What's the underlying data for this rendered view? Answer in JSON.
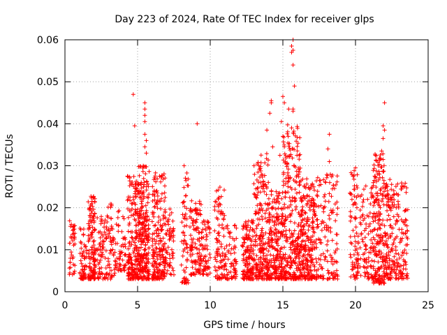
{
  "chart_data": {
    "type": "scatter",
    "title": "Day 223 of 2024, Rate Of TEC Index for receiver glps",
    "xlabel": "GPS time / hours",
    "ylabel": "ROTI / TECUs",
    "xlim": [
      0,
      25
    ],
    "ylim": [
      0,
      0.06
    ],
    "x_ticks": [
      0,
      5,
      10,
      15,
      20,
      25
    ],
    "y_ticks": [
      0,
      0.01,
      0.02,
      0.03,
      0.04,
      0.05,
      0.06
    ],
    "x_tick_labels": [
      "0",
      "5",
      "10",
      "15",
      "20",
      "25"
    ],
    "y_tick_labels": [
      "0",
      "0.01",
      "0.02",
      "0.03",
      "0.04",
      "0.05",
      "0.06"
    ],
    "grid": true,
    "marker": "+",
    "color": "#ff0000",
    "clusters": [
      {
        "x": [
          0.3,
          0.7
        ],
        "y": [
          0.004,
          0.017
        ],
        "n": 40
      },
      {
        "x": [
          1.0,
          1.5
        ],
        "y": [
          0.003,
          0.016
        ],
        "n": 60
      },
      {
        "x": [
          1.6,
          2.1
        ],
        "y": [
          0.003,
          0.023
        ],
        "n": 130
      },
      {
        "x": [
          2.2,
          2.8
        ],
        "y": [
          0.003,
          0.018
        ],
        "n": 60
      },
      {
        "x": [
          2.8,
          3.5
        ],
        "y": [
          0.003,
          0.021
        ],
        "n": 70
      },
      {
        "x": [
          3.5,
          4.2
        ],
        "y": [
          0.005,
          0.02
        ],
        "n": 50
      },
      {
        "x": [
          4.3,
          5.0
        ],
        "y": [
          0.003,
          0.028
        ],
        "n": 160
      },
      {
        "x": [
          5.0,
          5.8
        ],
        "y": [
          0.003,
          0.03
        ],
        "n": 260
      },
      {
        "x": [
          6.0,
          6.9
        ],
        "y": [
          0.003,
          0.029
        ],
        "n": 200
      },
      {
        "x": [
          6.9,
          7.5
        ],
        "y": [
          0.004,
          0.02
        ],
        "n": 60
      },
      {
        "x": [
          8.0,
          8.5
        ],
        "y": [
          0.002,
          0.03
        ],
        "n": 60
      },
      {
        "x": [
          8.6,
          9.4
        ],
        "y": [
          0.004,
          0.022
        ],
        "n": 110
      },
      {
        "x": [
          9.4,
          10.0
        ],
        "y": [
          0.004,
          0.017
        ],
        "n": 60
      },
      {
        "x": [
          10.3,
          11.0
        ],
        "y": [
          0.003,
          0.025
        ],
        "n": 90
      },
      {
        "x": [
          11.0,
          11.8
        ],
        "y": [
          0.003,
          0.016
        ],
        "n": 70
      },
      {
        "x": [
          12.2,
          13.0
        ],
        "y": [
          0.003,
          0.017
        ],
        "n": 140
      },
      {
        "x": [
          13.0,
          14.0
        ],
        "y": [
          0.003,
          0.033
        ],
        "n": 210
      },
      {
        "x": [
          14.0,
          15.0
        ],
        "y": [
          0.003,
          0.025
        ],
        "n": 210
      },
      {
        "x": [
          15.0,
          16.2
        ],
        "y": [
          0.003,
          0.04
        ],
        "n": 290
      },
      {
        "x": [
          16.2,
          17.2
        ],
        "y": [
          0.003,
          0.027
        ],
        "n": 230
      },
      {
        "x": [
          17.2,
          18.8
        ],
        "y": [
          0.003,
          0.028
        ],
        "n": 150
      },
      {
        "x": [
          19.6,
          20.2
        ],
        "y": [
          0.003,
          0.029
        ],
        "n": 80
      },
      {
        "x": [
          20.3,
          21.2
        ],
        "y": [
          0.003,
          0.026
        ],
        "n": 90
      },
      {
        "x": [
          21.2,
          22.0
        ],
        "y": [
          0.002,
          0.033
        ],
        "n": 200
      },
      {
        "x": [
          22.0,
          22.7
        ],
        "y": [
          0.003,
          0.027
        ],
        "n": 120
      },
      {
        "x": [
          22.7,
          23.6
        ],
        "y": [
          0.003,
          0.026
        ],
        "n": 110
      }
    ],
    "outliers": [
      {
        "x": 4.7,
        "y": 0.047
      },
      {
        "x": 4.8,
        "y": 0.0395
      },
      {
        "x": 5.5,
        "y": 0.045
      },
      {
        "x": 5.5,
        "y": 0.0435
      },
      {
        "x": 5.5,
        "y": 0.042
      },
      {
        "x": 5.5,
        "y": 0.0405
      },
      {
        "x": 5.5,
        "y": 0.0375
      },
      {
        "x": 5.6,
        "y": 0.036
      },
      {
        "x": 5.5,
        "y": 0.0345
      },
      {
        "x": 5.6,
        "y": 0.033
      },
      {
        "x": 9.1,
        "y": 0.04
      },
      {
        "x": 8.2,
        "y": 0.03
      },
      {
        "x": 13.9,
        "y": 0.0385
      },
      {
        "x": 14.2,
        "y": 0.0455
      },
      {
        "x": 14.2,
        "y": 0.045
      },
      {
        "x": 14.1,
        "y": 0.0425
      },
      {
        "x": 14.3,
        "y": 0.0345
      },
      {
        "x": 15.0,
        "y": 0.0465
      },
      {
        "x": 15.1,
        "y": 0.045
      },
      {
        "x": 14.9,
        "y": 0.0405
      },
      {
        "x": 15.0,
        "y": 0.037
      },
      {
        "x": 14.8,
        "y": 0.0325
      },
      {
        "x": 15.1,
        "y": 0.0345
      },
      {
        "x": 15.4,
        "y": 0.0435
      },
      {
        "x": 15.7,
        "y": 0.06
      },
      {
        "x": 15.6,
        "y": 0.0585
      },
      {
        "x": 15.7,
        "y": 0.0575
      },
      {
        "x": 15.6,
        "y": 0.057
      },
      {
        "x": 15.7,
        "y": 0.054
      },
      {
        "x": 15.8,
        "y": 0.049
      },
      {
        "x": 15.7,
        "y": 0.0435
      },
      {
        "x": 15.7,
        "y": 0.043
      },
      {
        "x": 15.6,
        "y": 0.039
      },
      {
        "x": 15.3,
        "y": 0.0305
      },
      {
        "x": 18.2,
        "y": 0.0375
      },
      {
        "x": 18.1,
        "y": 0.034
      },
      {
        "x": 18.2,
        "y": 0.031
      },
      {
        "x": 20.0,
        "y": 0.0295
      },
      {
        "x": 21.8,
        "y": 0.0335
      },
      {
        "x": 22.0,
        "y": 0.045
      },
      {
        "x": 21.9,
        "y": 0.0395
      },
      {
        "x": 22.0,
        "y": 0.0385
      },
      {
        "x": 21.9,
        "y": 0.0365
      },
      {
        "x": 21.9,
        "y": 0.0315
      }
    ]
  }
}
